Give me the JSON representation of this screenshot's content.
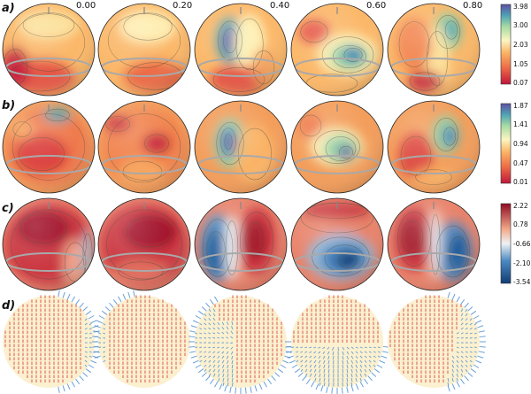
{
  "phases": [
    "0.00",
    "0.20",
    "0.40",
    "0.60",
    "0.80"
  ],
  "rows": [
    {
      "label": "a)",
      "colormap": "spectral",
      "colorbar_ticks": [
        "3.98",
        "3.00",
        "2.03",
        "1.05",
        "0.07"
      ]
    },
    {
      "label": "b)",
      "colormap": "spectral",
      "colorbar_ticks": [
        "1.87",
        "1.41",
        "0.94",
        "0.47",
        "0.01"
      ]
    },
    {
      "label": "c)",
      "colormap": "diverging",
      "colorbar_ticks": [
        "2.22",
        "0.78",
        "-0.66",
        "-2.10",
        "-3.54"
      ]
    },
    {
      "label": "d)",
      "colormap": "vectors",
      "colorbar_ticks": []
    }
  ],
  "colors": {
    "low": "#c0163b",
    "mid": "#fbf6c2",
    "high": "#5e4fa2",
    "pos": "#9b1026",
    "neg": "#1d5c9a",
    "vec_red": "#d52a2a",
    "vec_blue": "#4f8fd0",
    "ring": "#a9a9a9"
  }
}
